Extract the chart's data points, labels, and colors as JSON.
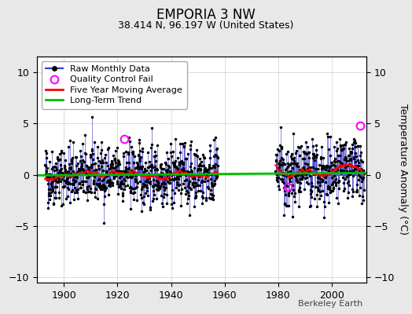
{
  "title": "EMPORIA 3 NW",
  "subtitle": "38.414 N, 96.197 W (United States)",
  "ylabel": "Temperature Anomaly (°C)",
  "xlim": [
    1890,
    2013
  ],
  "ylim": [
    -10.5,
    11.5
  ],
  "yticks": [
    -10,
    -5,
    0,
    5,
    10
  ],
  "xticks": [
    1900,
    1920,
    1940,
    1960,
    1980,
    2000
  ],
  "start_year": 1893,
  "end_year": 2012,
  "gap_start": 1957.5,
  "gap_end": 1979.0,
  "seed": 42,
  "bg_color": "#e8e8e8",
  "plot_bg": "#ffffff",
  "raw_color": "#3333cc",
  "dot_color": "#000000",
  "moving_avg_color": "#ff0000",
  "trend_color": "#00bb00",
  "qc_fail_color": "#ff00ff",
  "qc_fail_points": [
    [
      1922.5,
      3.5
    ],
    [
      1983.5,
      -1.2
    ],
    [
      2010.5,
      4.8
    ]
  ],
  "trend_slope": 0.002,
  "trend_intercept": 0.05,
  "legend_fontsize": 8,
  "moving_avg_window": 60,
  "title_fontsize": 12,
  "subtitle_fontsize": 9,
  "tick_fontsize": 9,
  "ylabel_fontsize": 9,
  "watermark": "Berkeley Earth",
  "watermark_fontsize": 8
}
